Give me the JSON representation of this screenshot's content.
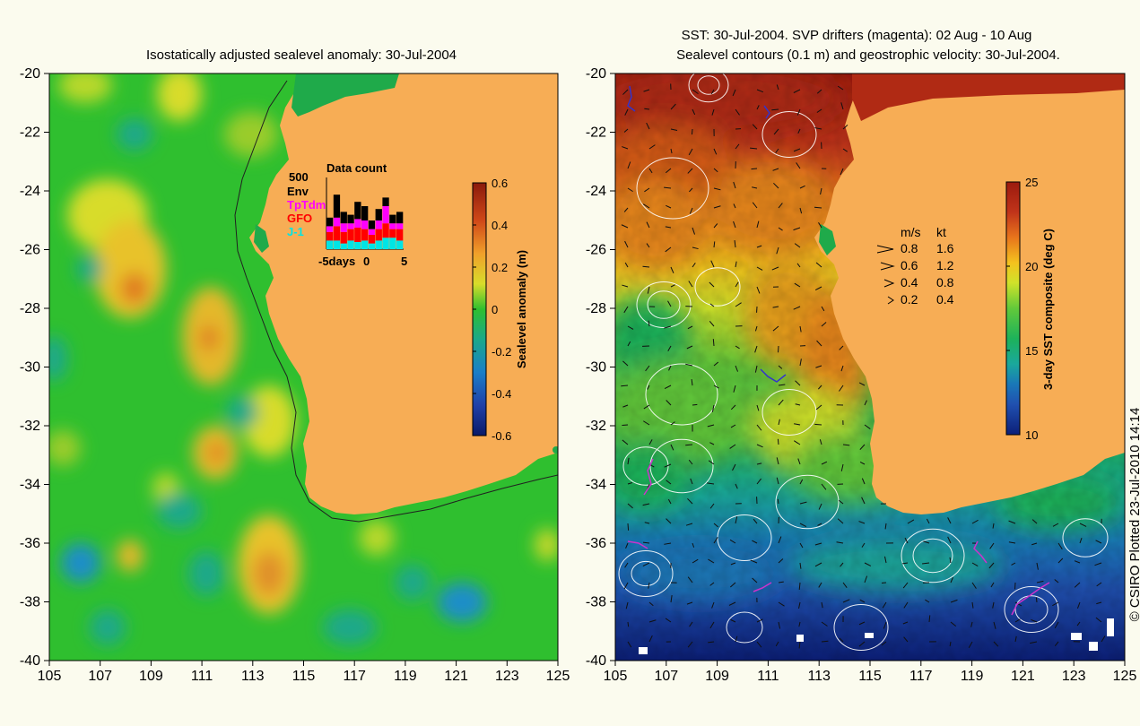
{
  "left_panel": {
    "title": "Isostatically adjusted sealevel anomaly: 30-Jul-2004",
    "x_ticks": [
      "105",
      "107",
      "109",
      "111",
      "113",
      "115",
      "117",
      "119",
      "121",
      "123",
      "125"
    ],
    "y_ticks": [
      "-20",
      "-22",
      "-24",
      "-26",
      "-28",
      "-30",
      "-32",
      "-34",
      "-36",
      "-38",
      "-40"
    ],
    "colorbar": {
      "label": "Sealevel anomaly (m)",
      "ticks": [
        "0.6",
        "0.4",
        "0.2",
        "0",
        "-0.2",
        "-0.4",
        "-0.6"
      ],
      "range": [
        -0.6,
        0.6
      ]
    },
    "data_count": {
      "title": "Data count",
      "y_label": "500",
      "legend": [
        {
          "name": "Env",
          "color": "#000000"
        },
        {
          "name": "TpTdm",
          "color": "#ff00ff"
        },
        {
          "name": "GFO",
          "color": "#ff0000"
        },
        {
          "name": "J-1",
          "color": "#00e5e5"
        }
      ],
      "x_label_prefix": "-5days",
      "x_label_mid": "0",
      "x_label_end": "5",
      "bars": [
        {
          "env": 60,
          "tp": 40,
          "gfo": 60,
          "j1": 60
        },
        {
          "env": 160,
          "tp": 60,
          "gfo": 100,
          "j1": 60
        },
        {
          "env": 80,
          "tp": 60,
          "gfo": 80,
          "j1": 40
        },
        {
          "env": 60,
          "tp": 40,
          "gfo": 80,
          "j1": 60
        },
        {
          "env": 120,
          "tp": 60,
          "gfo": 100,
          "j1": 50
        },
        {
          "env": 100,
          "tp": 60,
          "gfo": 80,
          "j1": 60
        },
        {
          "env": 60,
          "tp": 40,
          "gfo": 60,
          "j1": 40
        },
        {
          "env": 80,
          "tp": 60,
          "gfo": 80,
          "j1": 60
        },
        {
          "env": 60,
          "tp": 120,
          "gfo": 100,
          "j1": 80
        },
        {
          "env": 60,
          "tp": 40,
          "gfo": 60,
          "j1": 80
        },
        {
          "env": 80,
          "tp": 40,
          "gfo": 80,
          "j1": 60
        }
      ]
    }
  },
  "right_panel": {
    "title_line1": "SST: 30-Jul-2004. SVP drifters (magenta): 02 Aug - 10 Aug",
    "title_line2": "Sealevel contours (0.1 m) and geostrophic velocity: 30-Jul-2004.",
    "x_ticks": [
      "105",
      "107",
      "109",
      "111",
      "113",
      "115",
      "117",
      "119",
      "121",
      "123",
      "125"
    ],
    "y_ticks": [
      "-20",
      "-22",
      "-24",
      "-26",
      "-28",
      "-30",
      "-32",
      "-34",
      "-36",
      "-38",
      "-40"
    ],
    "colorbar": {
      "label": "3-day SST composite (deg C)",
      "ticks": [
        "25",
        "20",
        "15",
        "10"
      ],
      "range": [
        10,
        25
      ]
    },
    "velocity_legend": {
      "header_ms": "m/s",
      "header_kt": "kt",
      "rows": [
        {
          "ms": "0.8",
          "kt": "1.6"
        },
        {
          "ms": "0.6",
          "kt": "1.2"
        },
        {
          "ms": "0.4",
          "kt": "0.8"
        },
        {
          "ms": "0.2",
          "kt": "0.4"
        }
      ]
    }
  },
  "credit": "© CSIRO Plotted 23-Jul-2010 14:14",
  "colors": {
    "land": "#f7ad55",
    "background": "#fbfbee",
    "ocean_base": "#2fbf2f",
    "drifter": "#cc33cc"
  }
}
